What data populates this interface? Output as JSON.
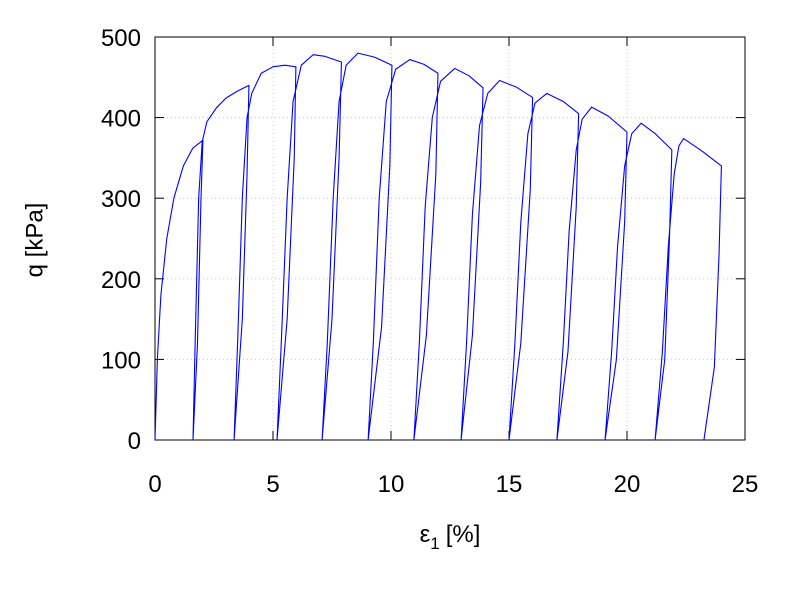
{
  "chart_data": {
    "type": "line",
    "xlabel": "ε",
    "xlabel_subscript": "1",
    "xlabel_unit": "[%]",
    "ylabel": "q [kPa]",
    "xlim": [
      0,
      25
    ],
    "xticks": [
      0,
      5,
      10,
      15,
      20,
      25
    ],
    "ylim": [
      0,
      500
    ],
    "yticks": [
      0,
      100,
      200,
      300,
      400,
      500
    ],
    "grid": true,
    "x": [
      0,
      0.1,
      0.25,
      0.5,
      0.8,
      1.2,
      1.6,
      2.03,
      1.95,
      1.8,
      1.61,
      1.7,
      1.85,
      2.0,
      2.2,
      2.6,
      3.0,
      3.5,
      3.98,
      3.9,
      3.7,
      3.35,
      3.5,
      3.7,
      3.9,
      4.1,
      4.5,
      5.0,
      5.5,
      5.97,
      5.9,
      5.6,
      5.17,
      5.35,
      5.6,
      5.85,
      6.2,
      6.7,
      7.2,
      7.9,
      7.8,
      7.5,
      7.08,
      7.3,
      7.55,
      7.8,
      8.1,
      8.6,
      9.3,
      10.04,
      9.95,
      9.6,
      9.03,
      9.25,
      9.5,
      9.8,
      10.2,
      10.8,
      11.4,
      11.99,
      11.9,
      11.5,
      10.97,
      11.2,
      11.45,
      11.75,
      12.1,
      12.7,
      13.3,
      13.9,
      13.8,
      13.45,
      12.97,
      13.2,
      13.45,
      13.75,
      14.1,
      14.6,
      15.3,
      16.0,
      15.9,
      15.5,
      15.0,
      15.25,
      15.5,
      15.8,
      16.1,
      16.6,
      17.3,
      17.95,
      17.85,
      17.5,
      17.03,
      17.3,
      17.55,
      17.85,
      18.1,
      18.5,
      19.2,
      20.0,
      19.9,
      19.55,
      19.07,
      19.35,
      19.6,
      19.9,
      20.2,
      20.6,
      21.2,
      21.9,
      21.8,
      21.6,
      21.19,
      21.5,
      21.75,
      22.0,
      22.2,
      22.4,
      23.2,
      24.0,
      23.9,
      23.7,
      23.26
    ],
    "series": [
      {
        "color": "#0000ff",
        "values": [
          0,
          100,
          180,
          250,
          300,
          340,
          362,
          372,
          300,
          120,
          0,
          120,
          300,
          370,
          395,
          412,
          424,
          433,
          440,
          330,
          150,
          0,
          120,
          300,
          400,
          430,
          455,
          463,
          465,
          463,
          350,
          150,
          0,
          120,
          300,
          420,
          465,
          478,
          476,
          469,
          350,
          150,
          0,
          120,
          300,
          420,
          465,
          480,
          475,
          465,
          340,
          140,
          0,
          120,
          300,
          420,
          460,
          472,
          466,
          455,
          330,
          130,
          0,
          120,
          290,
          400,
          445,
          461,
          452,
          437,
          320,
          130,
          0,
          120,
          280,
          390,
          430,
          446,
          438,
          425,
          310,
          120,
          0,
          120,
          270,
          380,
          418,
          430,
          420,
          405,
          290,
          110,
          0,
          120,
          260,
          360,
          398,
          413,
          402,
          382,
          270,
          100,
          0,
          110,
          240,
          340,
          380,
          393,
          380,
          360,
          250,
          100,
          0,
          110,
          240,
          330,
          365,
          374,
          358,
          340,
          230,
          90,
          0
        ]
      }
    ]
  }
}
